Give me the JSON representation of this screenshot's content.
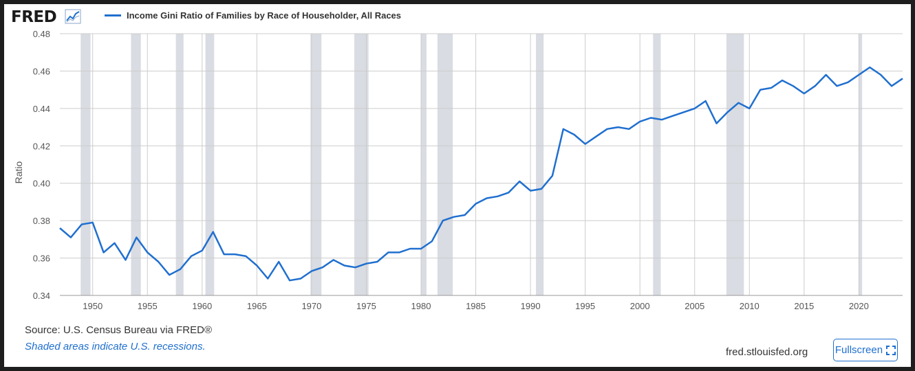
{
  "header": {
    "logo_text": "FRED",
    "logo_icon": "line-chart-icon",
    "legend_label": "Income Gini Ratio of Families by Race of Householder, All Races"
  },
  "footer": {
    "source": "Source: U.S. Census Bureau via FRED®",
    "note": "Shaded areas indicate U.S. recessions.",
    "site": "fred.stlouisfed.org",
    "fullscreen_label": "Fullscreen",
    "fullscreen_icon": "expand-icon"
  },
  "colors": {
    "series": "#1f6fcf",
    "recession": "#d9dce2",
    "grid": "#cccccc"
  },
  "chart_data": {
    "type": "line",
    "title": "Income Gini Ratio of Families by Race of Householder, All Races",
    "xlabel": "",
    "ylabel": "Ratio",
    "xlim": [
      1947,
      2024
    ],
    "ylim": [
      0.34,
      0.48
    ],
    "x_ticks": [
      1950,
      1955,
      1960,
      1965,
      1970,
      1975,
      1980,
      1985,
      1990,
      1995,
      2000,
      2005,
      2010,
      2015,
      2020
    ],
    "y_ticks": [
      "0.34",
      "0.36",
      "0.38",
      "0.40",
      "0.42",
      "0.44",
      "0.46",
      "0.48"
    ],
    "grid": true,
    "legend": "top-left",
    "recessions": [
      [
        1948.9,
        1949.8
      ],
      [
        1953.5,
        1954.4
      ],
      [
        1957.6,
        1958.3
      ],
      [
        1960.3,
        1961.1
      ],
      [
        1969.9,
        1970.9
      ],
      [
        1973.9,
        1975.2
      ],
      [
        1980.0,
        1980.5
      ],
      [
        1981.5,
        1982.9
      ],
      [
        1990.5,
        1991.2
      ],
      [
        2001.2,
        2001.9
      ],
      [
        2007.9,
        2009.5
      ],
      [
        2020.0,
        2020.3
      ]
    ],
    "series": [
      {
        "name": "Income Gini Ratio of Families by Race of Householder, All Races",
        "x": [
          1947,
          1948,
          1949,
          1950,
          1951,
          1952,
          1953,
          1954,
          1955,
          1956,
          1957,
          1958,
          1959,
          1960,
          1961,
          1962,
          1963,
          1964,
          1965,
          1966,
          1967,
          1968,
          1969,
          1970,
          1971,
          1972,
          1973,
          1974,
          1975,
          1976,
          1977,
          1978,
          1979,
          1980,
          1981,
          1982,
          1983,
          1984,
          1985,
          1986,
          1987,
          1988,
          1989,
          1990,
          1991,
          1992,
          1993,
          1994,
          1995,
          1996,
          1997,
          1998,
          1999,
          2000,
          2001,
          2002,
          2003,
          2004,
          2005,
          2006,
          2007,
          2008,
          2009,
          2010,
          2011,
          2012,
          2013,
          2014,
          2015,
          2016,
          2017,
          2018,
          2019,
          2020,
          2021,
          2022,
          2023,
          2024
        ],
        "values": [
          0.376,
          0.371,
          0.378,
          0.379,
          0.363,
          0.368,
          0.359,
          0.371,
          0.363,
          0.358,
          0.351,
          0.354,
          0.361,
          0.364,
          0.374,
          0.362,
          0.362,
          0.361,
          0.356,
          0.349,
          0.358,
          0.348,
          0.349,
          0.353,
          0.355,
          0.359,
          0.356,
          0.355,
          0.357,
          0.358,
          0.363,
          0.363,
          0.365,
          0.365,
          0.369,
          0.38,
          0.382,
          0.383,
          0.389,
          0.392,
          0.393,
          0.395,
          0.401,
          0.396,
          0.397,
          0.404,
          0.429,
          0.426,
          0.421,
          0.425,
          0.429,
          0.43,
          0.429,
          0.433,
          0.435,
          0.434,
          0.436,
          0.438,
          0.44,
          0.444,
          0.432,
          0.438,
          0.443,
          0.44,
          0.45,
          0.451,
          0.455,
          0.452,
          0.448,
          0.452,
          0.458,
          0.452,
          0.454,
          0.458,
          0.462,
          0.458,
          0.452,
          0.456
        ]
      }
    ]
  }
}
